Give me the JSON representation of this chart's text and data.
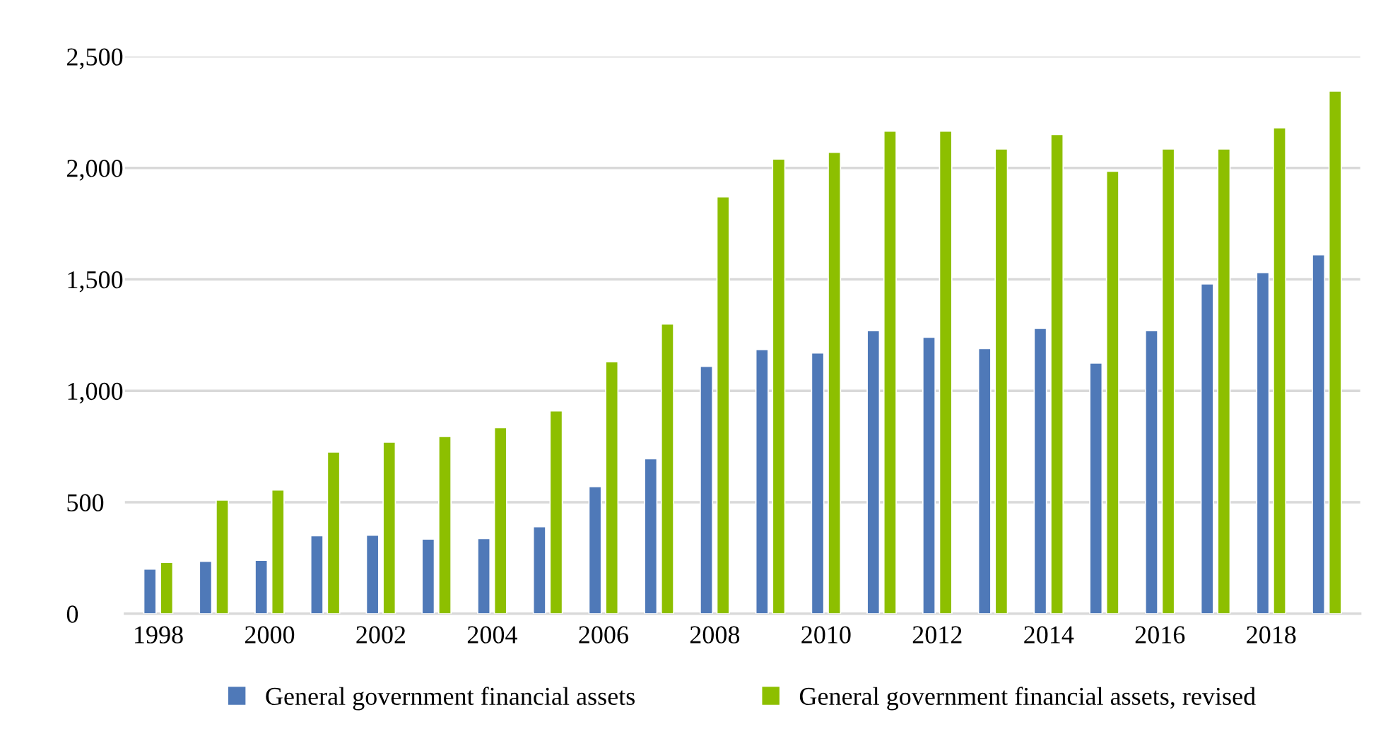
{
  "chart_data": {
    "type": "bar",
    "categories": [
      "1998",
      null,
      "2000",
      null,
      "2002",
      null,
      "2004",
      null,
      "2006",
      null,
      "2008",
      null,
      "2010",
      null,
      "2012",
      null,
      "2014",
      null,
      "2016",
      null,
      "2018",
      null
    ],
    "series": [
      {
        "name": "General government financial assets",
        "color": "#4f79b8",
        "values": [
          200,
          235,
          240,
          350,
          352,
          335,
          337,
          390,
          570,
          695,
          1110,
          1185,
          1170,
          1270,
          1240,
          1190,
          1280,
          1125,
          1270,
          1480,
          1530,
          1610
        ]
      },
      {
        "name": "General government financial assets, revised",
        "color": "#8dbf00",
        "values": [
          230,
          510,
          555,
          725,
          770,
          795,
          835,
          910,
          1130,
          1300,
          1870,
          2040,
          2070,
          2165,
          2165,
          2085,
          2150,
          1985,
          2085,
          2085,
          2180,
          2345
        ]
      }
    ],
    "ylim": [
      0,
      2500
    ],
    "yticks": [
      0,
      {
        "value": 500,
        "label": "500"
      },
      {
        "value": 1000,
        "label": "1,000"
      },
      {
        "value": 1500,
        "label": "1,500"
      },
      {
        "value": 2000,
        "label": "2,000"
      },
      {
        "value": 2500,
        "label": "2,500"
      }
    ],
    "grid": "y",
    "legend": "bottom"
  }
}
